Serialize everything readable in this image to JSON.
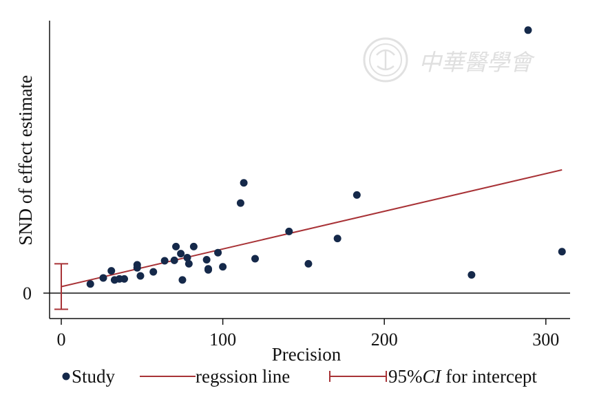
{
  "chart_data": {
    "type": "scatter",
    "xlabel": "Precision",
    "ylabel": "SND of effect estimate",
    "x_ticks": [
      0,
      100,
      200,
      300
    ],
    "y_ticks": [
      0
    ],
    "xlim": [
      -3,
      315
    ],
    "ylim": [
      -1.3,
      13.1
    ],
    "grid": false,
    "legend_position": "bottom",
    "series": [
      {
        "name": "Study",
        "color": "#15294a",
        "points": [
          [
            18,
            0.45
          ],
          [
            26,
            0.75
          ],
          [
            31,
            1.1
          ],
          [
            33,
            0.65
          ],
          [
            36,
            0.7
          ],
          [
            39,
            0.7
          ],
          [
            47,
            1.4
          ],
          [
            47,
            1.25
          ],
          [
            49,
            0.85
          ],
          [
            57,
            1.05
          ],
          [
            64,
            1.6
          ],
          [
            70,
            1.62
          ],
          [
            71,
            2.3
          ],
          [
            74,
            1.95
          ],
          [
            75,
            0.65
          ],
          [
            78,
            1.75
          ],
          [
            79,
            1.45
          ],
          [
            82,
            2.3
          ],
          [
            90,
            1.65
          ],
          [
            91,
            1.2
          ],
          [
            91,
            1.15
          ],
          [
            97,
            2.0
          ],
          [
            100,
            1.3
          ],
          [
            111,
            4.45
          ],
          [
            113,
            5.45
          ],
          [
            120,
            1.7
          ],
          [
            141,
            3.05
          ],
          [
            153,
            1.45
          ],
          [
            171,
            2.7
          ],
          [
            183,
            4.85
          ],
          [
            254,
            0.9
          ],
          [
            289,
            13.0
          ],
          [
            310,
            2.05
          ]
        ]
      }
    ],
    "regression_line": {
      "name": "regssion line",
      "color": "#a83236",
      "x_range": [
        0,
        310
      ],
      "intercept": 0.32,
      "slope": 0.01862
    },
    "intercept_ci": {
      "name": "95%CI for intercept",
      "x": 0,
      "lower": -0.8,
      "upper": 1.45,
      "color": "#a83236"
    }
  },
  "legend": {
    "study_label": "Study",
    "line_label": "regssion line",
    "ci_label_number": "95%",
    "ci_label_italic": "CI",
    "ci_label_rest": " for intercept"
  },
  "watermark": {
    "text": "中華醫學會"
  }
}
